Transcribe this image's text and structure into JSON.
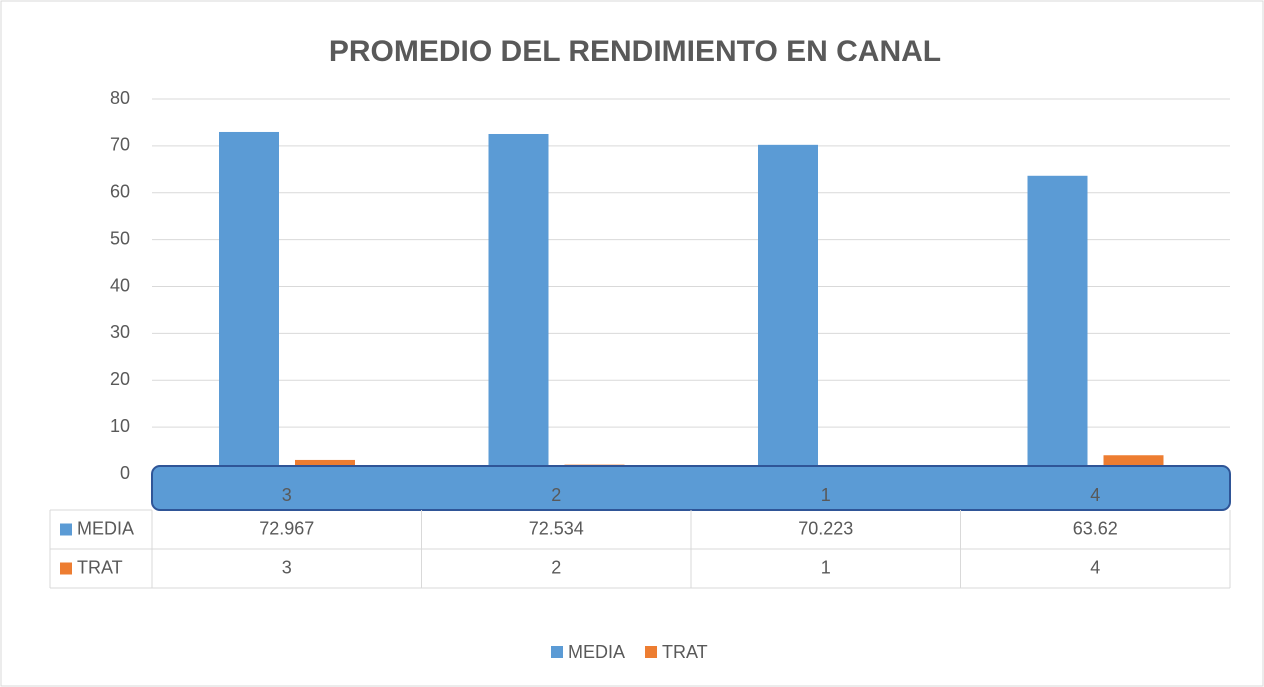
{
  "chart_data": {
    "type": "bar",
    "title": "PROMEDIO DEL RENDIMIENTO EN CANAL",
    "categories": [
      "3",
      "2",
      "1",
      "4"
    ],
    "series": [
      {
        "name": "MEDIA",
        "color": "#5b9bd5",
        "values": [
          72.967,
          72.534,
          70.223,
          63.62
        ]
      },
      {
        "name": "TRAT",
        "color": "#ed7d31",
        "values": [
          3,
          2,
          1,
          4
        ]
      }
    ],
    "ylim": [
      0,
      80
    ],
    "yticks": [
      0,
      10,
      20,
      30,
      40,
      50,
      60,
      70,
      80
    ],
    "grid": true,
    "legend": "bottom",
    "data_table": true
  }
}
